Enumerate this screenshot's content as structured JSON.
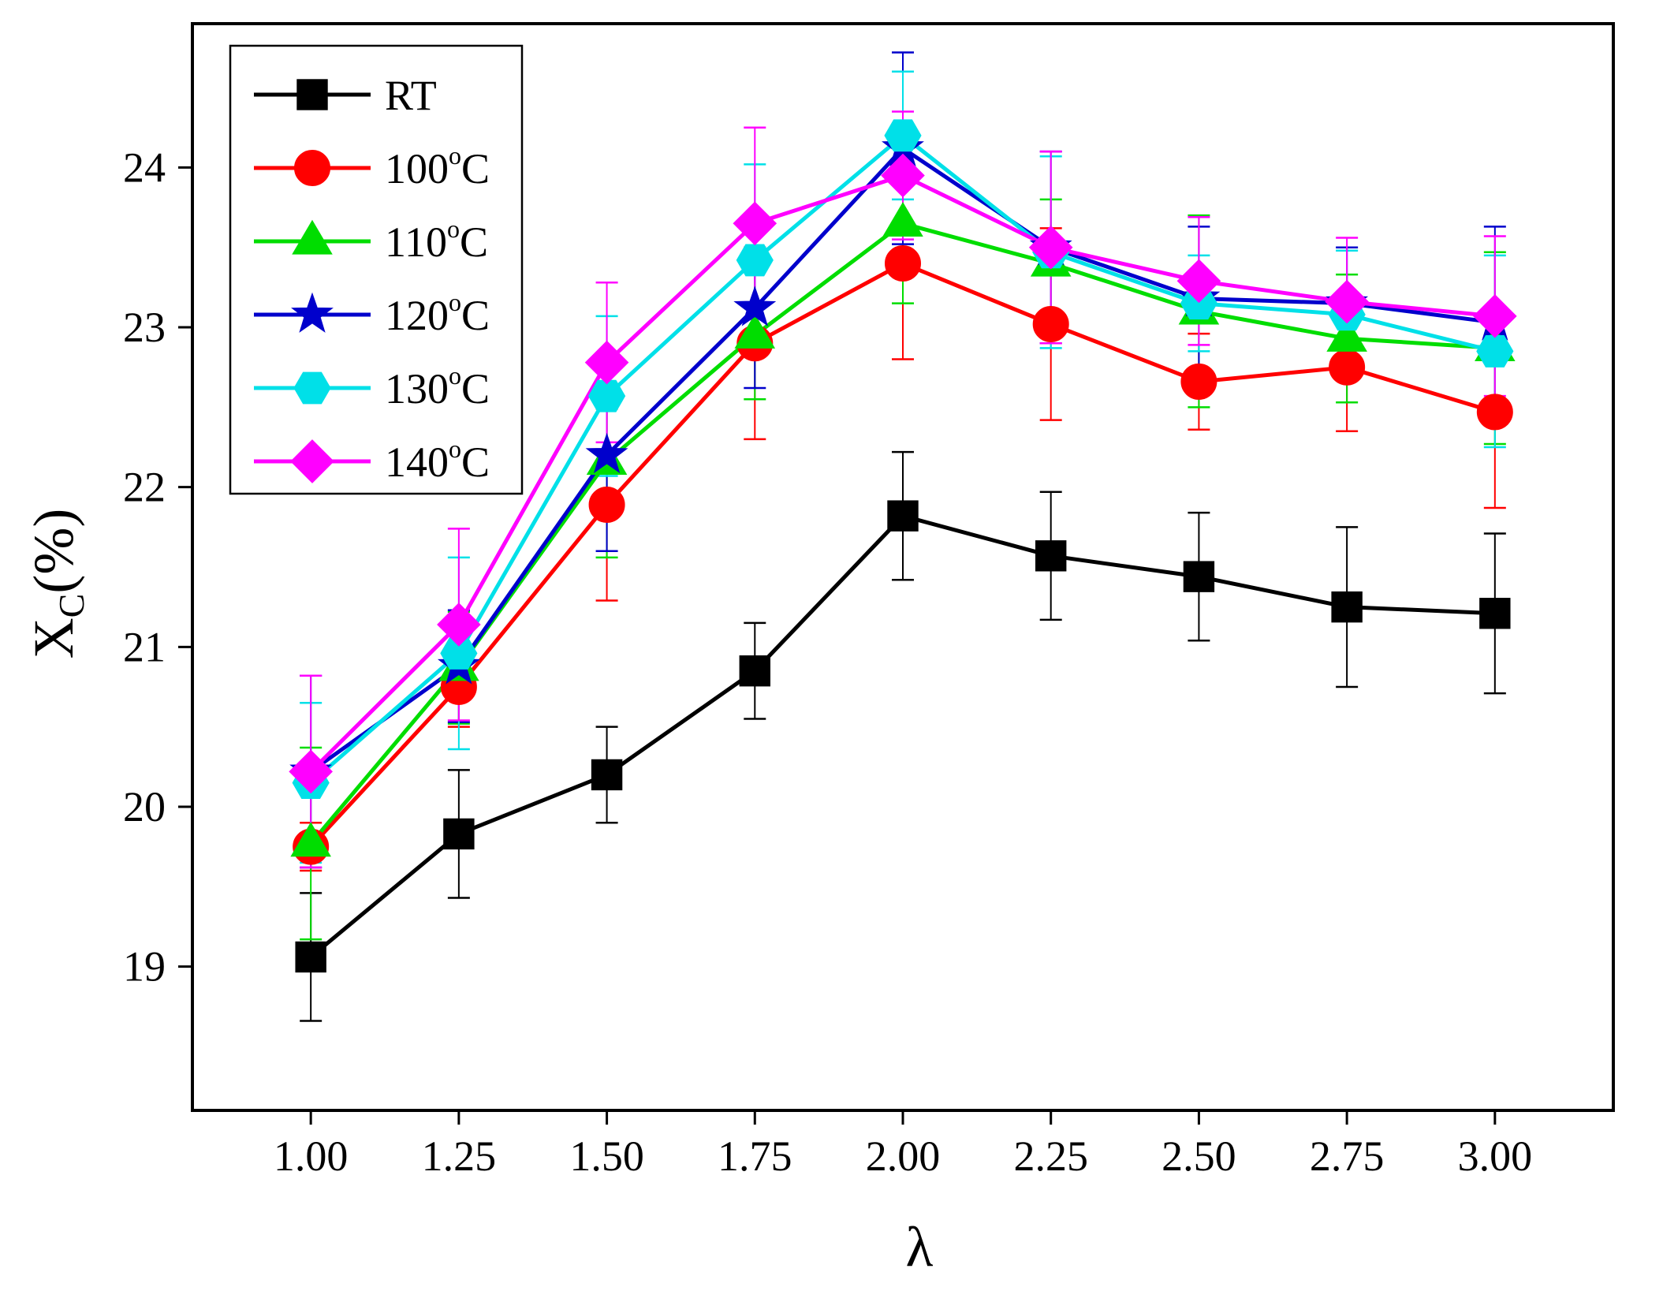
{
  "chart_data": {
    "type": "line",
    "title": "",
    "xlabel": "λ",
    "ylabel": {
      "base": "X",
      "sub": "C",
      "rest": "(%)"
    },
    "x": [
      1.0,
      1.25,
      1.5,
      1.75,
      2.0,
      2.25,
      2.5,
      2.75,
      3.0
    ],
    "xtick_labels": [
      "1.00",
      "1.25",
      "1.50",
      "1.75",
      "2.00",
      "2.25",
      "2.50",
      "2.75",
      "3.00"
    ],
    "xlim": [
      0.8,
      3.2
    ],
    "ylim": [
      18.1,
      24.9
    ],
    "yticks": [
      19,
      20,
      21,
      22,
      23,
      24
    ],
    "ytick_labels": [
      "19",
      "20",
      "21",
      "22",
      "23",
      "24"
    ],
    "grid": false,
    "legend_position": "top-left",
    "series": [
      {
        "name": "RT",
        "label_main": "RT",
        "label_sup": "",
        "label_tail": "",
        "color": "#000000",
        "marker": "square",
        "values": [
          19.06,
          19.83,
          20.2,
          20.85,
          21.82,
          21.57,
          21.44,
          21.25,
          21.21
        ],
        "errors": [
          0.4,
          0.4,
          0.3,
          0.3,
          0.4,
          0.4,
          0.4,
          0.5,
          0.5
        ]
      },
      {
        "name": "100°C",
        "label_main": "100",
        "label_sup": "o",
        "label_tail": "C",
        "color": "#ff0000",
        "marker": "circle",
        "values": [
          19.75,
          20.75,
          21.89,
          22.9,
          23.4,
          23.02,
          22.66,
          22.75,
          22.47
        ],
        "errors": [
          0.15,
          0.25,
          0.6,
          0.6,
          0.6,
          0.6,
          0.3,
          0.4,
          0.6
        ]
      },
      {
        "name": "110°C",
        "label_main": "110",
        "label_sup": "o",
        "label_tail": "C",
        "color": "#00dd00",
        "marker": "triangle",
        "values": [
          19.77,
          20.87,
          22.16,
          22.95,
          23.65,
          23.4,
          23.1,
          22.93,
          22.87
        ],
        "errors": [
          0.6,
          0.35,
          0.6,
          0.4,
          0.5,
          0.4,
          0.6,
          0.4,
          0.6
        ]
      },
      {
        "name": "120°C",
        "label_main": "120",
        "label_sup": "o",
        "label_tail": "C",
        "color": "#0000cc",
        "marker": "star",
        "values": [
          20.22,
          20.88,
          22.2,
          23.12,
          24.12,
          23.5,
          23.18,
          23.15,
          23.03
        ],
        "errors": [
          0.6,
          0.35,
          0.6,
          0.5,
          0.6,
          0.6,
          0.45,
          0.35,
          0.6
        ]
      },
      {
        "name": "130°C",
        "label_main": "130",
        "label_sup": "o",
        "label_tail": "C",
        "color": "#00e0e8",
        "marker": "hexagon",
        "values": [
          20.15,
          20.96,
          22.57,
          23.42,
          24.2,
          23.47,
          23.15,
          23.08,
          22.85
        ],
        "errors": [
          0.5,
          0.6,
          0.5,
          0.6,
          0.4,
          0.6,
          0.3,
          0.4,
          0.6
        ]
      },
      {
        "name": "140°C",
        "label_main": "140",
        "label_sup": "o",
        "label_tail": "C",
        "color": "#ff00ff",
        "marker": "diamond",
        "values": [
          20.22,
          21.14,
          22.78,
          23.65,
          23.95,
          23.5,
          23.29,
          23.16,
          23.07
        ],
        "errors": [
          0.6,
          0.6,
          0.5,
          0.6,
          0.4,
          0.6,
          0.4,
          0.4,
          0.5
        ]
      }
    ]
  }
}
